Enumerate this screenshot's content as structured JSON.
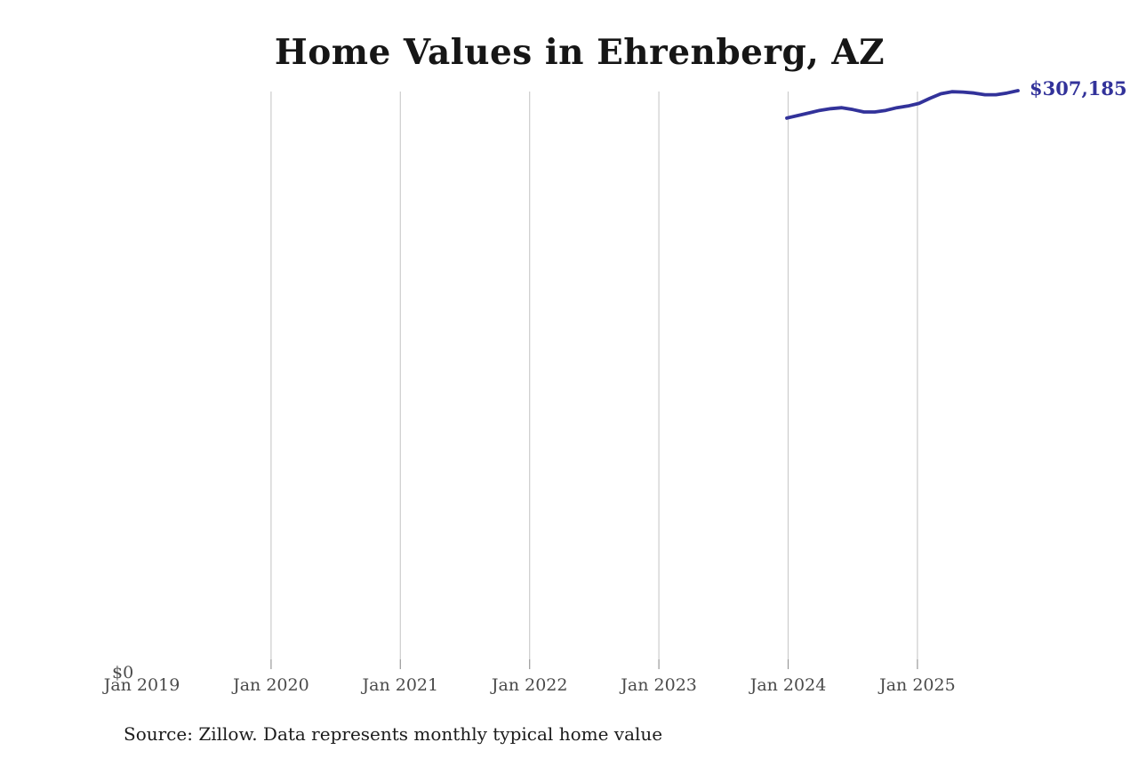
{
  "title": "Home Values in Ehrenberg, AZ",
  "source_note": "Source: Zillow. Data represents monthly typical home value",
  "end_label": "$307,185",
  "y_zero_label": "$0",
  "colors": {
    "line": "#32329a",
    "end_label": "#32329a",
    "grid": "#cccccc",
    "tick": "#999999",
    "axis_text": "#4a4a4a",
    "title_text": "#161616",
    "source_text": "#1c1c1c"
  },
  "chart_data": {
    "type": "line",
    "title": "Home Values in Ehrenberg, AZ",
    "xlabel": "",
    "ylabel": "",
    "grid": "vertical-only",
    "legend": "none",
    "ylim": [
      0,
      307185
    ],
    "x_tick_labels": [
      "Jan 2019",
      "Jan 2020",
      "Jan 2021",
      "Jan 2022",
      "Jan 2023",
      "Jan 2024",
      "Jan 2025"
    ],
    "y_tick_labels": [
      "$0"
    ],
    "end_value": 307185,
    "end_value_label": "$307,185",
    "series": [
      {
        "name": "Monthly typical home value",
        "color": "#32329a",
        "months": [
          "Jan 2024",
          "Feb 2024",
          "Mar 2024",
          "Apr 2024",
          "May 2024",
          "Jun 2024",
          "Jul 2024",
          "Aug 2024",
          "Sep 2024",
          "Oct 2024",
          "Nov 2024",
          "Dec 2024",
          "Jan 2025",
          "Feb 2025",
          "Mar 2025",
          "Apr 2025",
          "May 2025",
          "Jun 2025",
          "Jul 2025",
          "Aug 2025",
          "Sep 2025",
          "Oct 2025"
        ],
        "values": [
          292400,
          293800,
          295200,
          296600,
          297500,
          298000,
          297000,
          295700,
          295700,
          296600,
          298000,
          298900,
          300300,
          303100,
          305500,
          306600,
          306400,
          305900,
          305000,
          305000,
          305900,
          307185
        ]
      }
    ]
  }
}
